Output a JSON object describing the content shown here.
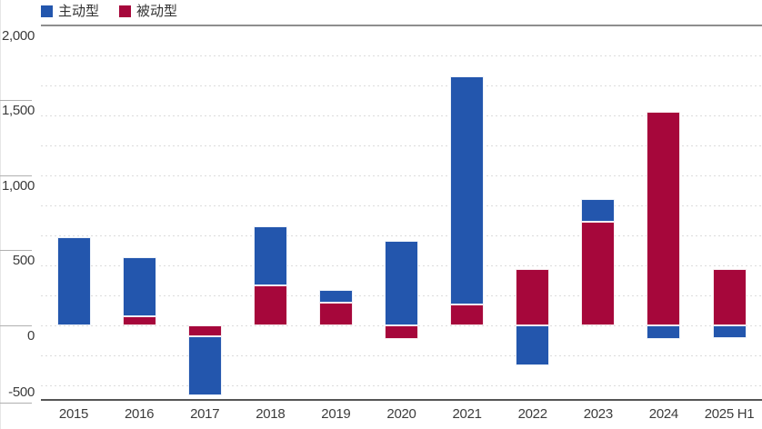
{
  "legend": {
    "items": [
      {
        "key": "active",
        "label": "主动型",
        "color": "#2356AD"
      },
      {
        "key": "passive",
        "label": "被动型",
        "color": "#A6073B"
      }
    ]
  },
  "axis": {
    "y_tick_values": [
      2000,
      1500,
      1000,
      500,
      0,
      -500
    ],
    "y_tick_labels": [
      "2,000",
      "1,500",
      "1,000",
      "500",
      "0",
      "-500"
    ]
  },
  "chart_data": {
    "type": "bar",
    "stacked": true,
    "title": "",
    "xlabel": "",
    "ylabel": "",
    "categories": [
      "2015",
      "2016",
      "2017",
      "2018",
      "2019",
      "2020",
      "2021",
      "2022",
      "2023",
      "2024",
      "2025 H1"
    ],
    "series": [
      {
        "name": "主动型",
        "key": "active",
        "color": "#2356AD",
        "values": [
          585,
          390,
          -395,
          395,
          85,
          565,
          1520,
          -270,
          150,
          -95,
          -90
        ]
      },
      {
        "name": "被动型",
        "key": "passive",
        "color": "#A6073B",
        "values": [
          0,
          60,
          -75,
          265,
          150,
          -95,
          140,
          375,
          690,
          1425,
          375
        ]
      }
    ],
    "stack_order": [
      "passive",
      "active"
    ],
    "ylim": [
      -500,
      2000
    ],
    "ytick_interval": 500,
    "gridline_interval": 200,
    "gridline_style": "dotted",
    "grid": "on",
    "legend_position": "top-left"
  },
  "colors": {
    "active": "#2356AD",
    "passive": "#A6073B",
    "axis_text": "#3C3C3C",
    "top_border": "#8E8E8E",
    "bottom_axis": "#555555",
    "tick": "#B0B0B0",
    "gridline": "#DCDCDC",
    "background": "#FFFFFF"
  }
}
